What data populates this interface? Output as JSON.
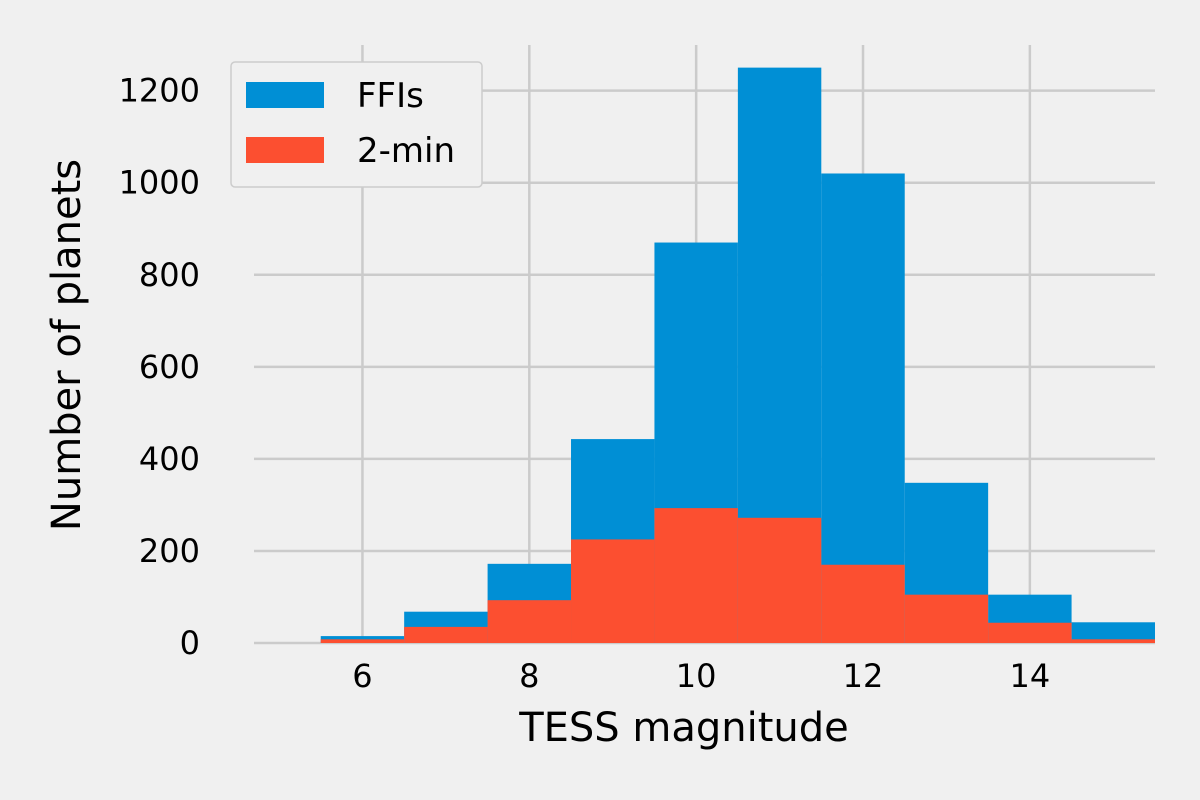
{
  "chart_data": {
    "type": "bar",
    "subtype": "histogram",
    "bins": [
      {
        "x0": 5.5,
        "x1": 6.5
      },
      {
        "x0": 6.5,
        "x1": 7.5
      },
      {
        "x0": 7.5,
        "x1": 8.5
      },
      {
        "x0": 8.5,
        "x1": 9.5
      },
      {
        "x0": 9.5,
        "x1": 10.5
      },
      {
        "x0": 10.5,
        "x1": 11.5
      },
      {
        "x0": 11.5,
        "x1": 12.5
      },
      {
        "x0": 12.5,
        "x1": 13.5
      },
      {
        "x0": 13.5,
        "x1": 14.5
      },
      {
        "x0": 14.5,
        "x1": 15.5
      }
    ],
    "series": [
      {
        "name": "FFIs",
        "color": "#008fd5",
        "values": [
          15,
          68,
          172,
          443,
          870,
          1250,
          1020,
          348,
          105,
          45
        ]
      },
      {
        "name": "2-min",
        "color": "#fc4f30",
        "values": [
          8,
          35,
          93,
          225,
          293,
          272,
          170,
          105,
          44,
          8
        ]
      }
    ],
    "overlay": true,
    "xlabel": "TESS magnitude",
    "ylabel": "Number of planets",
    "xlim": [
      4.7,
      15.5
    ],
    "ylim": [
      0,
      1310
    ],
    "xticks": [
      6,
      8,
      10,
      12,
      14
    ],
    "yticks": [
      0,
      200,
      400,
      600,
      800,
      1000,
      1200
    ],
    "grid": true,
    "legend_position": "top-left",
    "style": "fivethirtyeight"
  }
}
